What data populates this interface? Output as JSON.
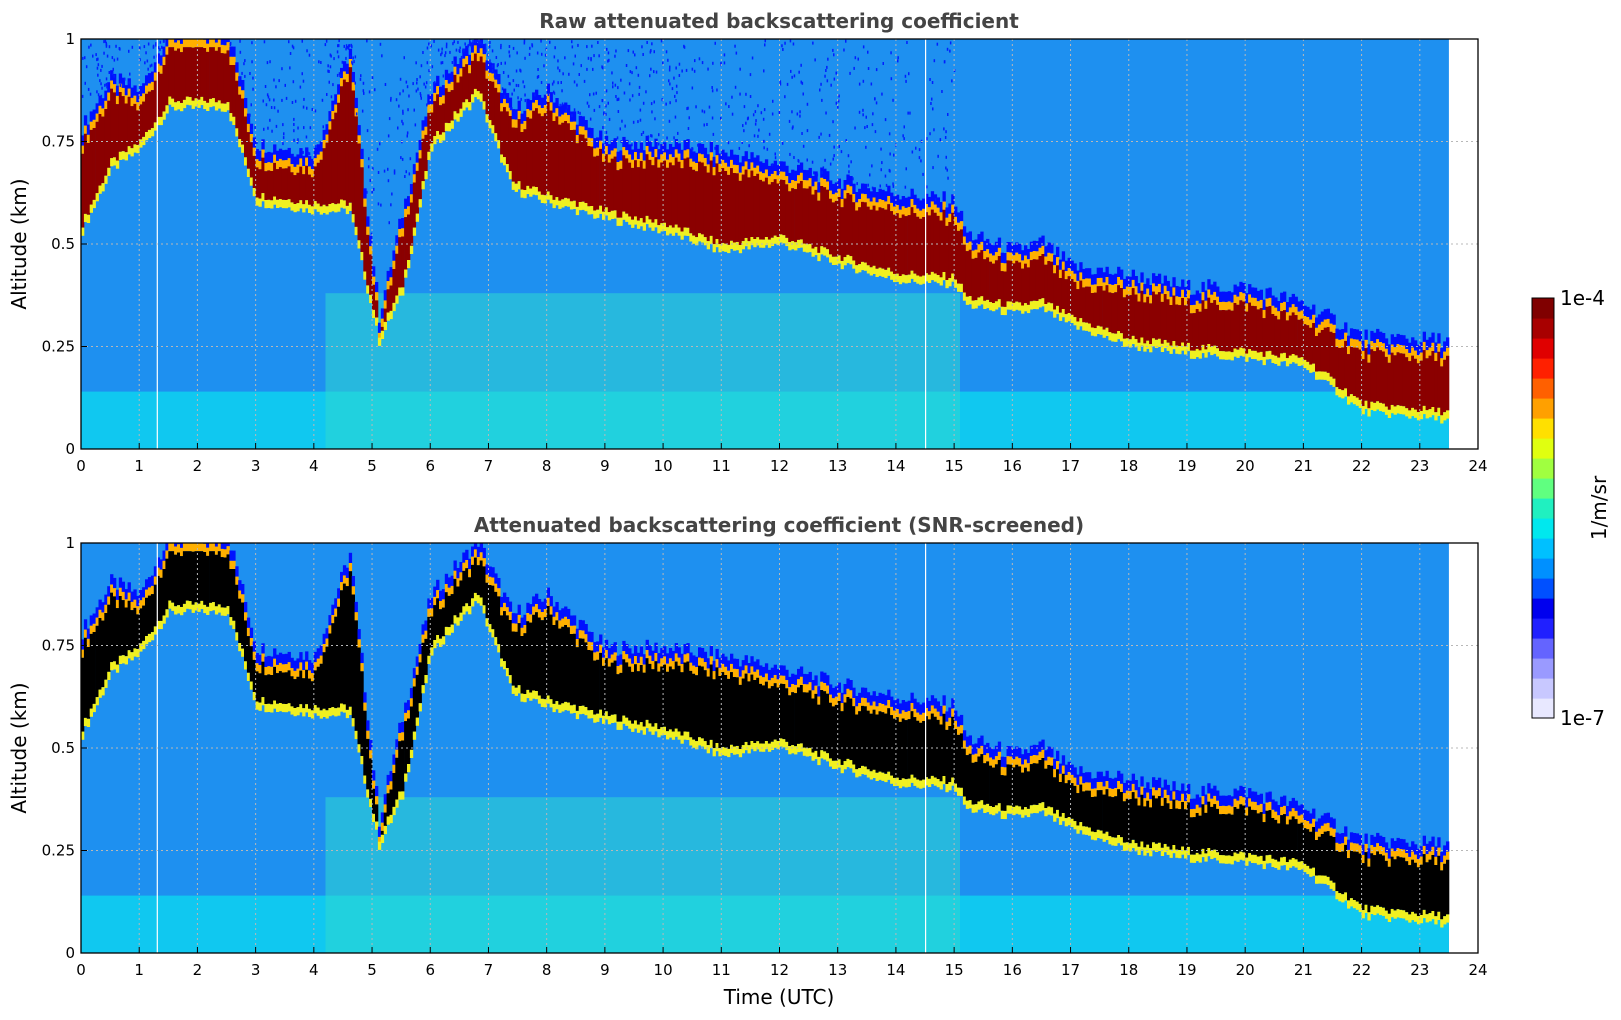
{
  "chart_data": [
    {
      "type": "heatmap",
      "title": "Raw attenuated backscattering coefficient",
      "xlabel": "",
      "ylabel": "Altitude (km)",
      "xlim": [
        0,
        24
      ],
      "ylim": [
        0,
        1
      ],
      "xticks": [
        "0",
        "1",
        "2",
        "3",
        "4",
        "5",
        "6",
        "7",
        "8",
        "9",
        "10",
        "11",
        "12",
        "13",
        "14",
        "15",
        "16",
        "17",
        "18",
        "19",
        "20",
        "21",
        "22",
        "23",
        "24"
      ],
      "yticks": [
        "0",
        "0.25",
        "0.5",
        "0.75",
        "1"
      ],
      "grid": true,
      "layer_top_km": [
        [
          0,
          0.76
        ],
        [
          0.5,
          0.88
        ],
        [
          1.0,
          0.85
        ],
        [
          1.5,
          1.0
        ],
        [
          2.5,
          1.0
        ],
        [
          3.0,
          0.72
        ],
        [
          4.0,
          0.7
        ],
        [
          4.6,
          0.95
        ],
        [
          5.1,
          0.3
        ],
        [
          5.5,
          0.55
        ],
        [
          6.0,
          0.85
        ],
        [
          6.8,
          0.98
        ],
        [
          7.4,
          0.8
        ],
        [
          8.0,
          0.85
        ],
        [
          9.0,
          0.72
        ],
        [
          10.0,
          0.72
        ],
        [
          11.0,
          0.7
        ],
        [
          12.0,
          0.67
        ],
        [
          13.0,
          0.63
        ],
        [
          14.0,
          0.6
        ],
        [
          15.0,
          0.58
        ],
        [
          15.2,
          0.5
        ],
        [
          16.0,
          0.46
        ],
        [
          16.5,
          0.48
        ],
        [
          17.0,
          0.42
        ],
        [
          18.0,
          0.4
        ],
        [
          19.0,
          0.37
        ],
        [
          20.0,
          0.37
        ],
        [
          21.0,
          0.33
        ],
        [
          22.0,
          0.25
        ],
        [
          23.5,
          0.24
        ]
      ],
      "layer_base_km": [
        [
          0,
          0.55
        ],
        [
          0.5,
          0.7
        ],
        [
          1.0,
          0.75
        ],
        [
          1.5,
          0.85
        ],
        [
          2.5,
          0.85
        ],
        [
          3.0,
          0.62
        ],
        [
          4.0,
          0.6
        ],
        [
          4.6,
          0.6
        ],
        [
          5.1,
          0.28
        ],
        [
          5.5,
          0.4
        ],
        [
          6.0,
          0.75
        ],
        [
          6.8,
          0.88
        ],
        [
          7.4,
          0.65
        ],
        [
          8.0,
          0.62
        ],
        [
          9.0,
          0.58
        ],
        [
          10.0,
          0.55
        ],
        [
          11.0,
          0.5
        ],
        [
          12.0,
          0.52
        ],
        [
          13.0,
          0.47
        ],
        [
          14.0,
          0.43
        ],
        [
          15.0,
          0.42
        ],
        [
          15.2,
          0.37
        ],
        [
          16.0,
          0.35
        ],
        [
          16.5,
          0.36
        ],
        [
          17.0,
          0.32
        ],
        [
          18.0,
          0.27
        ],
        [
          19.0,
          0.25
        ],
        [
          20.0,
          0.24
        ],
        [
          21.0,
          0.22
        ],
        [
          22.0,
          0.11
        ],
        [
          23.5,
          0.09
        ]
      ]
    },
    {
      "type": "heatmap",
      "title": "Attenuated backscattering coefficient (SNR-screened)",
      "xlabel": "Time (UTC)",
      "ylabel": "Altitude (km)",
      "xlim": [
        0,
        24
      ],
      "ylim": [
        0,
        1
      ],
      "xticks": [
        "0",
        "1",
        "2",
        "3",
        "4",
        "5",
        "6",
        "7",
        "8",
        "9",
        "10",
        "11",
        "12",
        "13",
        "14",
        "15",
        "16",
        "17",
        "18",
        "19",
        "20",
        "21",
        "22",
        "23",
        "24"
      ],
      "yticks": [
        "0",
        "0.25",
        "0.5",
        "0.75",
        "1"
      ],
      "grid": true,
      "screened": true
    }
  ],
  "colorbar": {
    "label": "1/m/sr",
    "max_label": "1e-4",
    "min_label": "1e-7",
    "colors": [
      "#e8e8ff",
      "#c8c8ff",
      "#9a9aff",
      "#6464ff",
      "#2020ff",
      "#0000ee",
      "#0050ff",
      "#0090ff",
      "#00c0ff",
      "#00e8ee",
      "#20f0c0",
      "#60ff80",
      "#a0ff40",
      "#e0ff10",
      "#ffe000",
      "#ffa000",
      "#ff6000",
      "#ff2000",
      "#e00000",
      "#a80000",
      "#800000"
    ]
  }
}
